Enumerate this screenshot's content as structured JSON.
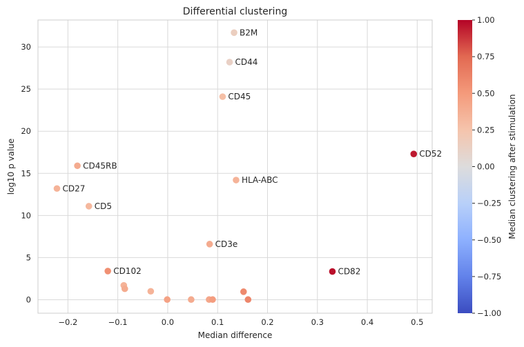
{
  "chart_data": {
    "type": "scatter",
    "title": "Differential clustering",
    "xlabel": "Median difference",
    "ylabel": "log10 p value",
    "xlim": [
      -0.26,
      0.53
    ],
    "ylim": [
      -1.6,
      33.2
    ],
    "x_ticks": [
      -0.2,
      -0.1,
      0.0,
      0.1,
      0.2,
      0.3,
      0.4,
      0.5
    ],
    "x_tick_labels": [
      "−0.2",
      "−0.1",
      "0.0",
      "0.1",
      "0.2",
      "0.3",
      "0.4",
      "0.5"
    ],
    "y_ticks": [
      0,
      5,
      10,
      15,
      20,
      25,
      30
    ],
    "y_tick_labels": [
      "0",
      "5",
      "10",
      "15",
      "20",
      "25",
      "30"
    ],
    "grid": true,
    "colorbar": {
      "label": "Median clustering after stimulation",
      "range": [
        -1.0,
        1.0
      ],
      "colormap": "coolwarm",
      "ticks": [
        -1.0,
        -0.75,
        -0.5,
        -0.25,
        0.0,
        0.25,
        0.5,
        0.75,
        1.0
      ],
      "tick_labels": [
        "−1.00",
        "−0.75",
        "−0.50",
        "−0.25",
        "0.00",
        "0.25",
        "0.50",
        "0.75",
        "1.00"
      ]
    },
    "points": [
      {
        "x": 0.133,
        "y": 31.7,
        "c": 0.15,
        "label": "B2M"
      },
      {
        "x": 0.124,
        "y": 28.2,
        "c": 0.12,
        "label": "CD44"
      },
      {
        "x": 0.11,
        "y": 24.1,
        "c": 0.28,
        "label": "CD45"
      },
      {
        "x": 0.493,
        "y": 17.3,
        "c": 0.95,
        "label": "CD52"
      },
      {
        "x": -0.181,
        "y": 15.9,
        "c": 0.4,
        "label": "CD45RB"
      },
      {
        "x": 0.137,
        "y": 14.2,
        "c": 0.35,
        "label": "HLA-ABC"
      },
      {
        "x": -0.222,
        "y": 13.2,
        "c": 0.35,
        "label": "CD27"
      },
      {
        "x": -0.158,
        "y": 11.1,
        "c": 0.32,
        "label": "CD5"
      },
      {
        "x": 0.084,
        "y": 6.6,
        "c": 0.4,
        "label": "CD3e"
      },
      {
        "x": -0.12,
        "y": 3.4,
        "c": 0.55,
        "label": "CD102"
      },
      {
        "x": 0.33,
        "y": 3.35,
        "c": 0.97,
        "label": "CD82"
      },
      {
        "x": -0.088,
        "y": 1.7,
        "c": 0.35,
        "label": ""
      },
      {
        "x": -0.086,
        "y": 1.3,
        "c": 0.4,
        "label": ""
      },
      {
        "x": -0.034,
        "y": 1.0,
        "c": 0.35,
        "label": ""
      },
      {
        "x": 0.152,
        "y": 0.95,
        "c": 0.58,
        "label": ""
      },
      {
        "x": -0.001,
        "y": 0.02,
        "c": 0.45,
        "label": ""
      },
      {
        "x": 0.047,
        "y": 0.02,
        "c": 0.4,
        "label": ""
      },
      {
        "x": 0.083,
        "y": 0.02,
        "c": 0.42,
        "label": ""
      },
      {
        "x": 0.09,
        "y": 0.02,
        "c": 0.48,
        "label": ""
      },
      {
        "x": 0.161,
        "y": 0.02,
        "c": 0.6,
        "label": ""
      }
    ]
  }
}
